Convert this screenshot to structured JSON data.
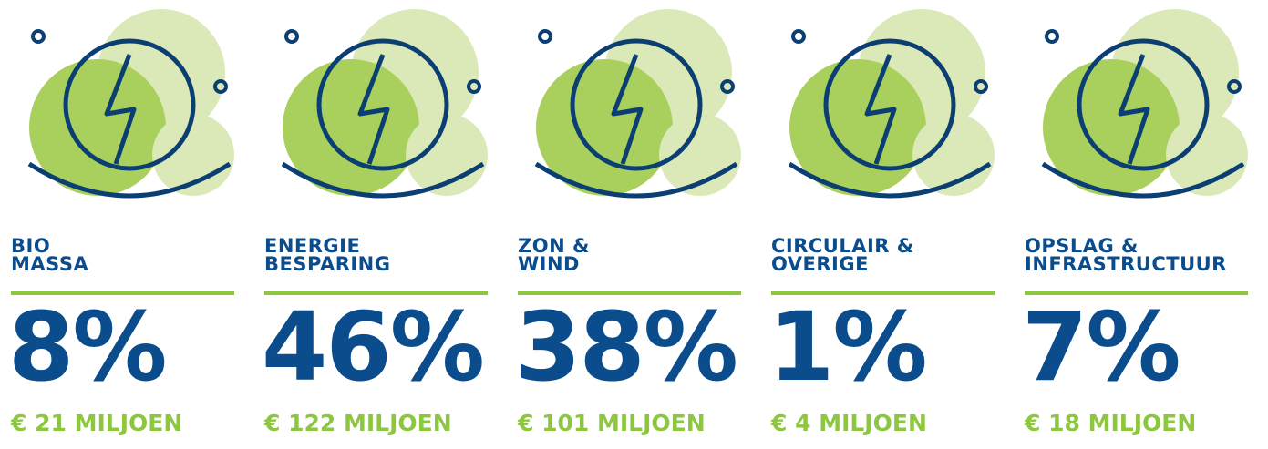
{
  "items": [
    {
      "title": [
        "BIO",
        "MASSA"
      ],
      "percent": "8%",
      "amount": "€ 21 MILJOEN"
    },
    {
      "title": [
        "ENERGIE",
        "BESPARING"
      ],
      "percent": "46%",
      "amount": "€ 122 MILJOEN"
    },
    {
      "title": [
        "ZON &",
        "WIND"
      ],
      "percent": "38%",
      "amount": "€ 101 MILJOEN"
    },
    {
      "title": [
        "CIRCULAIR &",
        "OVERIGE"
      ],
      "percent": "1%",
      "amount": "€ 4 MILJOEN"
    },
    {
      "title": [
        "OPSLAG &",
        "INFRASTRUCTUUR"
      ],
      "percent": "7%",
      "amount": "€ 18 MILJOEN"
    }
  ]
}
